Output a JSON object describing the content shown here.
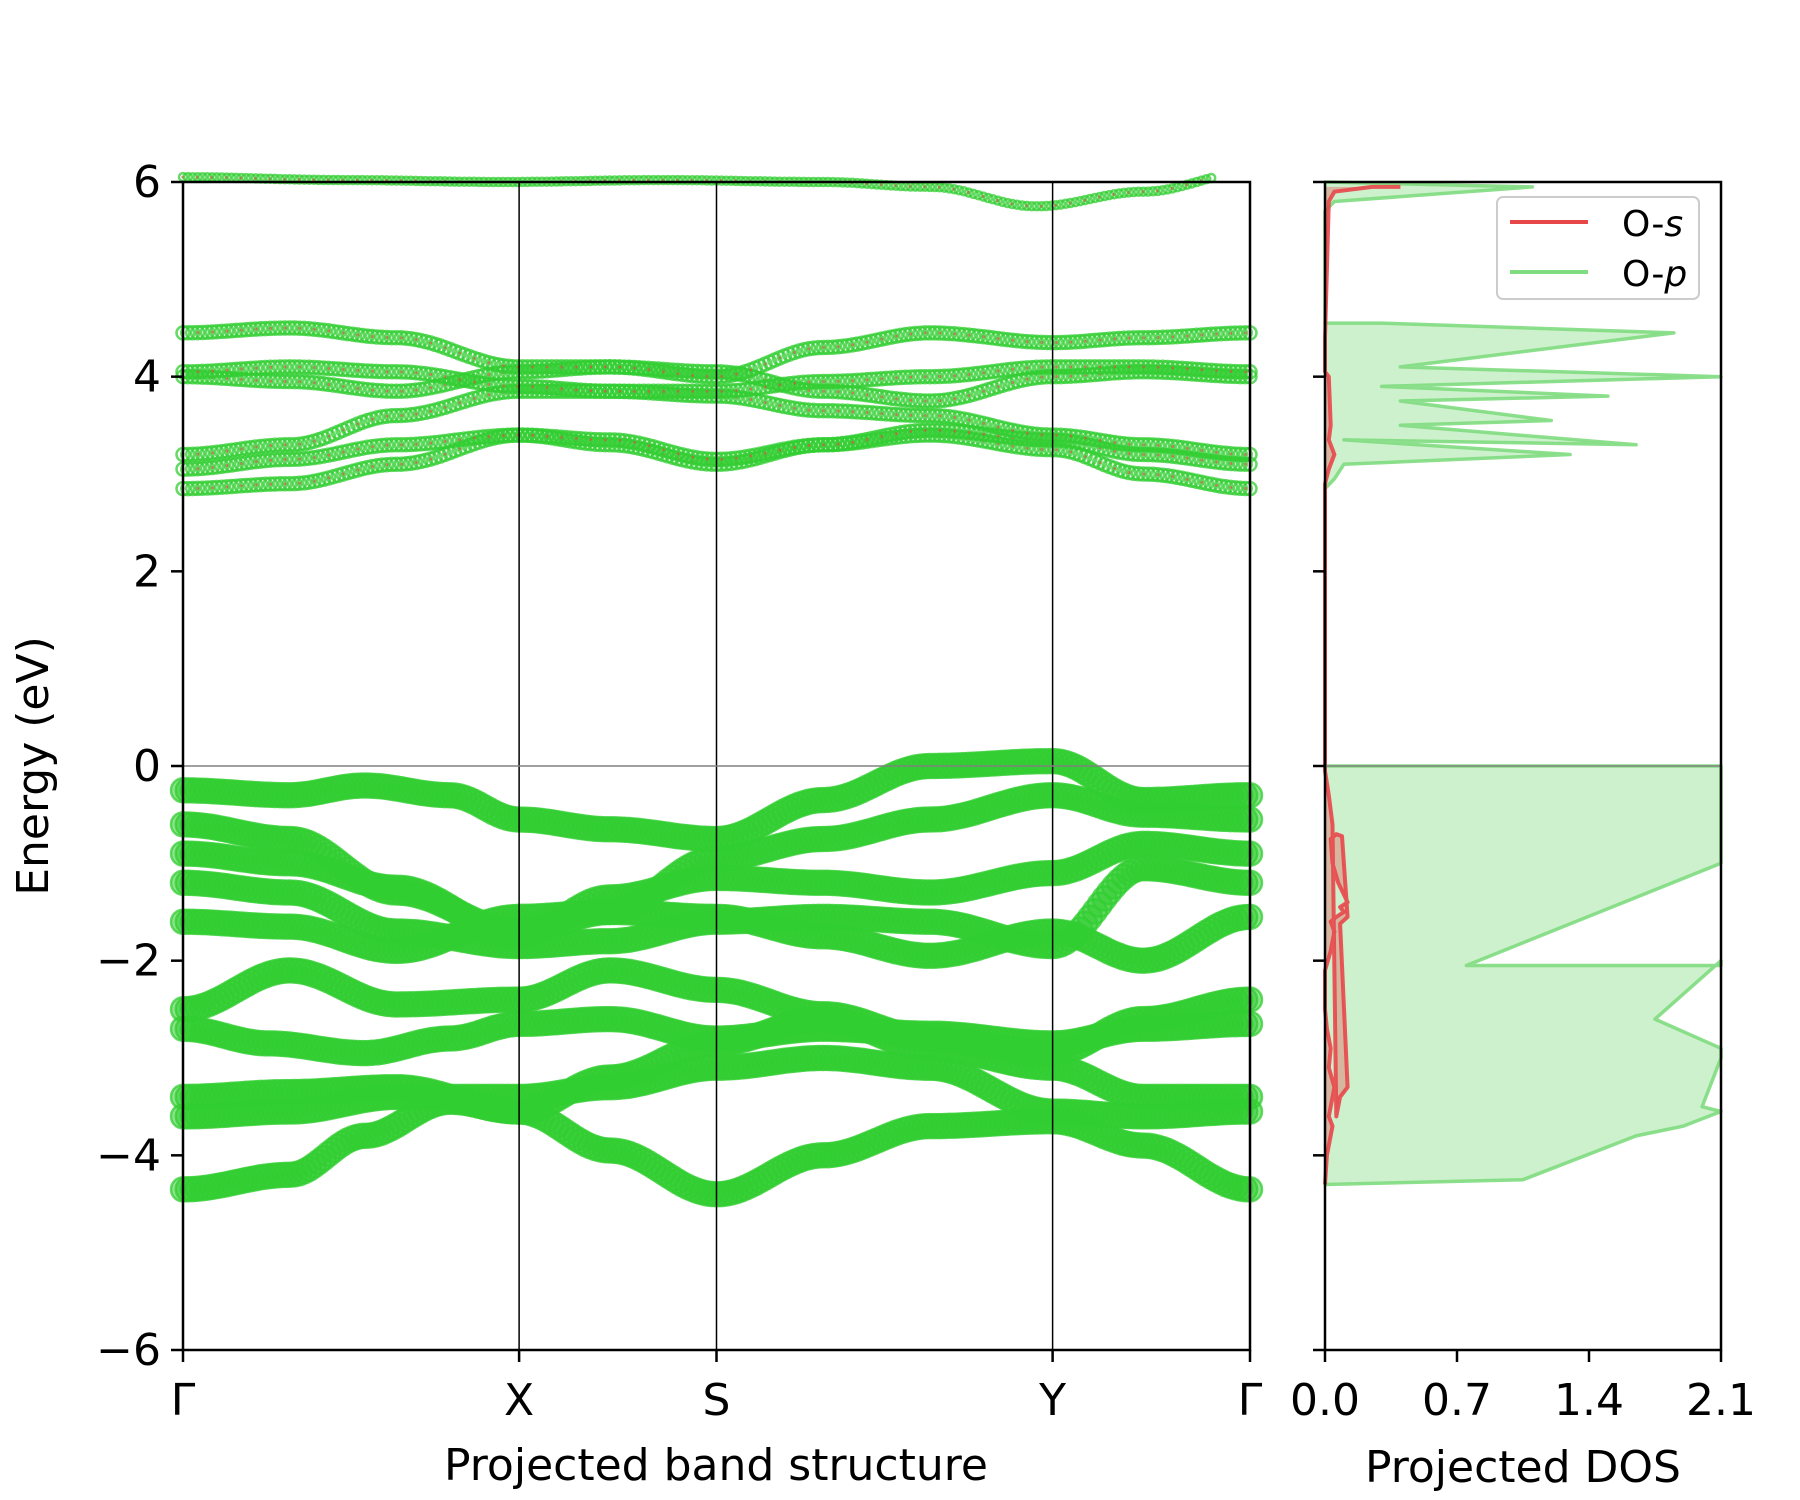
{
  "chart_data": [
    {
      "type": "scatter",
      "xlabel": "Projected band structure",
      "ylabel": "Energy (eV)",
      "ylim": [
        -6,
        6
      ],
      "yticks": [
        "6",
        "4",
        "2",
        "0",
        "−2",
        "−4",
        "−6"
      ],
      "ytick_values": [
        6,
        4,
        2,
        0,
        -2,
        -4,
        -6
      ],
      "kpoint_labels": [
        "Γ",
        "X",
        "S",
        "Y",
        "Γ"
      ],
      "kpoint_positions": [
        0,
        0.315,
        0.5,
        0.815,
        1.0
      ],
      "fermi_level": 0,
      "marker_color": "#32cd32",
      "accent_color": "#e8474a",
      "series": [
        {
          "band": "v1",
          "x": [
            0,
            0.1,
            0.17,
            0.25,
            0.315,
            0.4,
            0.5,
            0.6,
            0.7,
            0.815,
            0.9,
            1.0
          ],
          "y": [
            -4.35,
            -4.2,
            -3.8,
            -3.45,
            -3.55,
            -3.95,
            -4.4,
            -4.0,
            -3.7,
            -3.65,
            -3.9,
            -4.35
          ]
        },
        {
          "band": "v2",
          "x": [
            0,
            0.1,
            0.2,
            0.315,
            0.4,
            0.5,
            0.6,
            0.7,
            0.815,
            0.9,
            1.0
          ],
          "y": [
            -3.6,
            -3.55,
            -3.4,
            -3.4,
            -3.3,
            -3.1,
            -3.0,
            -3.1,
            -3.55,
            -3.6,
            -3.55
          ]
        },
        {
          "band": "v3",
          "x": [
            0,
            0.1,
            0.2,
            0.315,
            0.4,
            0.5,
            0.6,
            0.7,
            0.815,
            0.9,
            1.0
          ],
          "y": [
            -3.4,
            -3.35,
            -3.3,
            -3.55,
            -3.2,
            -2.85,
            -2.6,
            -2.9,
            -3.1,
            -3.4,
            -3.4
          ]
        },
        {
          "band": "v4",
          "x": [
            0,
            0.08,
            0.17,
            0.25,
            0.315,
            0.4,
            0.5,
            0.6,
            0.7,
            0.815,
            0.9,
            1.0
          ],
          "y": [
            -2.7,
            -2.85,
            -2.95,
            -2.8,
            -2.65,
            -2.6,
            -2.8,
            -2.7,
            -2.75,
            -2.85,
            -2.7,
            -2.65
          ]
        },
        {
          "band": "v5",
          "x": [
            0,
            0.1,
            0.2,
            0.315,
            0.4,
            0.5,
            0.6,
            0.7,
            0.815,
            0.9,
            1.0
          ],
          "y": [
            -2.5,
            -2.1,
            -2.45,
            -2.4,
            -2.1,
            -2.3,
            -2.55,
            -2.8,
            -2.95,
            -2.6,
            -2.4
          ]
        },
        {
          "band": "v6",
          "x": [
            0,
            0.1,
            0.2,
            0.315,
            0.4,
            0.5,
            0.6,
            0.7,
            0.815,
            0.9,
            1.0
          ],
          "y": [
            -1.6,
            -1.65,
            -1.9,
            -1.55,
            -1.5,
            -1.55,
            -1.75,
            -1.95,
            -1.7,
            -2.0,
            -1.55
          ]
        },
        {
          "band": "v7",
          "x": [
            0,
            0.1,
            0.2,
            0.315,
            0.4,
            0.5,
            0.6,
            0.7,
            0.815,
            0.9,
            1.0
          ],
          "y": [
            -1.2,
            -1.3,
            -1.7,
            -1.85,
            -1.8,
            -1.6,
            -1.55,
            -1.6,
            -1.85,
            -1.05,
            -1.2
          ]
        },
        {
          "band": "v8",
          "x": [
            0,
            0.1,
            0.2,
            0.315,
            0.4,
            0.5,
            0.6,
            0.7,
            0.815,
            0.9,
            1.0
          ],
          "y": [
            -0.9,
            -1.0,
            -1.25,
            -1.75,
            -1.35,
            -1.15,
            -1.2,
            -1.3,
            -1.1,
            -0.8,
            -0.9
          ]
        },
        {
          "band": "v9",
          "x": [
            0,
            0.1,
            0.2,
            0.315,
            0.4,
            0.5,
            0.6,
            0.7,
            0.815,
            0.9,
            1.0
          ],
          "y": [
            -0.6,
            -0.75,
            -1.3,
            -1.7,
            -1.5,
            -0.95,
            -0.75,
            -0.55,
            -0.3,
            -0.5,
            -0.55
          ]
        },
        {
          "band": "v10",
          "x": [
            0,
            0.1,
            0.17,
            0.25,
            0.315,
            0.4,
            0.5,
            0.6,
            0.7,
            0.815,
            0.9,
            1.0
          ],
          "y": [
            -0.25,
            -0.3,
            -0.2,
            -0.3,
            -0.55,
            -0.65,
            -0.75,
            -0.35,
            0.0,
            0.05,
            -0.35,
            -0.3
          ]
        },
        {
          "band": "c1",
          "x": [
            0,
            0.1,
            0.2,
            0.315,
            0.4,
            0.5,
            0.6,
            0.7,
            0.815,
            0.9,
            1.0
          ],
          "y": [
            2.85,
            2.9,
            3.1,
            3.4,
            3.3,
            3.1,
            3.3,
            3.4,
            3.25,
            3.0,
            2.85
          ]
        },
        {
          "band": "c2",
          "x": [
            0,
            0.1,
            0.2,
            0.315,
            0.4,
            0.5,
            0.6,
            0.7,
            0.815,
            0.9,
            1.0
          ],
          "y": [
            3.05,
            3.15,
            3.3,
            3.4,
            3.35,
            3.15,
            3.3,
            3.45,
            3.35,
            3.2,
            3.1
          ]
        },
        {
          "band": "c3",
          "x": [
            0,
            0.1,
            0.2,
            0.315,
            0.4,
            0.5,
            0.6,
            0.7,
            0.815,
            0.9,
            1.0
          ],
          "y": [
            3.2,
            3.3,
            3.6,
            3.85,
            3.85,
            3.8,
            3.65,
            3.6,
            3.4,
            3.3,
            3.2
          ]
        },
        {
          "band": "c4",
          "x": [
            0,
            0.1,
            0.2,
            0.315,
            0.4,
            0.5,
            0.6,
            0.7,
            0.815,
            0.9,
            1.0
          ],
          "y": [
            4.0,
            3.95,
            3.85,
            4.05,
            4.1,
            4.05,
            3.85,
            3.75,
            4.0,
            4.05,
            4.0
          ]
        },
        {
          "band": "c5",
          "x": [
            0,
            0.1,
            0.2,
            0.315,
            0.4,
            0.5,
            0.6,
            0.7,
            0.815,
            0.9,
            1.0
          ],
          "y": [
            4.05,
            4.1,
            4.05,
            3.9,
            3.85,
            3.85,
            3.95,
            4.0,
            4.1,
            4.1,
            4.05
          ]
        },
        {
          "band": "c6",
          "x": [
            0,
            0.1,
            0.2,
            0.315,
            0.4,
            0.5,
            0.6,
            0.7,
            0.815,
            0.9,
            1.0
          ],
          "y": [
            4.45,
            4.5,
            4.4,
            4.1,
            4.1,
            4.0,
            4.3,
            4.45,
            4.35,
            4.4,
            4.45
          ]
        },
        {
          "band": "c7",
          "x": [
            0,
            0.15,
            0.3,
            0.45,
            0.6,
            0.7,
            0.8,
            0.9,
            1.0
          ],
          "y": [
            6.05,
            6.02,
            6.0,
            6.02,
            6.0,
            5.95,
            5.75,
            5.9,
            6.1
          ]
        }
      ]
    },
    {
      "type": "line",
      "xlabel": "Projected DOS",
      "ylabel": "",
      "xlim": [
        0,
        2.1
      ],
      "ylim": [
        -6,
        6
      ],
      "xticks": [
        "0.0",
        "0.7",
        "1.4",
        "2.1"
      ],
      "xtick_values": [
        0,
        0.7,
        1.4,
        2.1
      ],
      "legend_position": "top-right",
      "legend": [
        {
          "prefix": "O-",
          "suffix": "s",
          "color": "#e8474a"
        },
        {
          "prefix": "O-",
          "suffix": "p",
          "color": "#7fdc7f"
        }
      ],
      "series": [
        {
          "name": "O-s",
          "color": "#e8474a",
          "x": [
            0,
            0.01,
            0.04,
            0.02,
            0.03,
            0.05,
            0.02,
            0.03,
            0.01,
            0.0,
            0.0,
            0.0,
            0.03,
            0.05,
            0.03,
            0.06,
            0.1,
            0.08,
            0.12,
            0.07,
            0.04,
            0.03,
            0.06,
            0.09,
            0.12,
            0.08,
            0.12,
            0.08,
            0.06,
            0.04,
            0.02,
            0.0,
            0.0,
            0.0,
            0.02,
            0.05,
            0.02,
            0.03,
            0.02,
            0.0,
            0.0,
            0.02,
            0.05,
            0.25,
            0.4
          ],
          "y": [
            -4.3,
            -4.0,
            -3.7,
            -3.6,
            -3.5,
            -3.3,
            -3.1,
            -2.9,
            -2.7,
            -2.5,
            -2.3,
            -2.1,
            -1.9,
            -1.7,
            -1.6,
            -1.55,
            -1.5,
            -1.45,
            -1.4,
            -1.2,
            -1.0,
            -0.75,
            -0.7,
            -0.72,
            -1.55,
            -1.62,
            -3.3,
            -3.4,
            -3.6,
            -0.6,
            -0.3,
            -0.05,
            0.0,
            2.9,
            3.05,
            3.2,
            3.35,
            3.5,
            4.0,
            4.05,
            4.4,
            5.8,
            5.9,
            5.95,
            5.95
          ]
        },
        {
          "name": "O-p",
          "color": "#7fdc7f",
          "x": [
            0.0,
            1.05,
            1.65,
            1.9,
            2.1,
            2.0,
            2.1,
            2.1,
            1.75,
            2.1,
            2.1,
            0.75,
            2.1,
            2.1,
            0.0,
            0.0,
            0.05,
            0.1,
            1.3,
            0.1,
            1.65,
            0.4,
            1.2,
            0.4,
            1.5,
            0.3,
            2.1,
            0.4,
            1.85,
            0.3,
            0.0,
            0.0,
            0.05,
            1.1,
            0.0
          ],
          "y": [
            -4.3,
            -4.25,
            -3.8,
            -3.7,
            -3.55,
            -3.5,
            -3.0,
            -2.9,
            -2.6,
            -2.0,
            -2.05,
            -2.05,
            -1.0,
            0.0,
            0.0,
            2.85,
            2.95,
            3.1,
            3.2,
            3.35,
            3.3,
            3.5,
            3.55,
            3.75,
            3.8,
            3.9,
            4.0,
            4.1,
            4.45,
            4.55,
            4.55,
            5.7,
            5.8,
            5.95,
            6.0
          ]
        }
      ]
    }
  ]
}
